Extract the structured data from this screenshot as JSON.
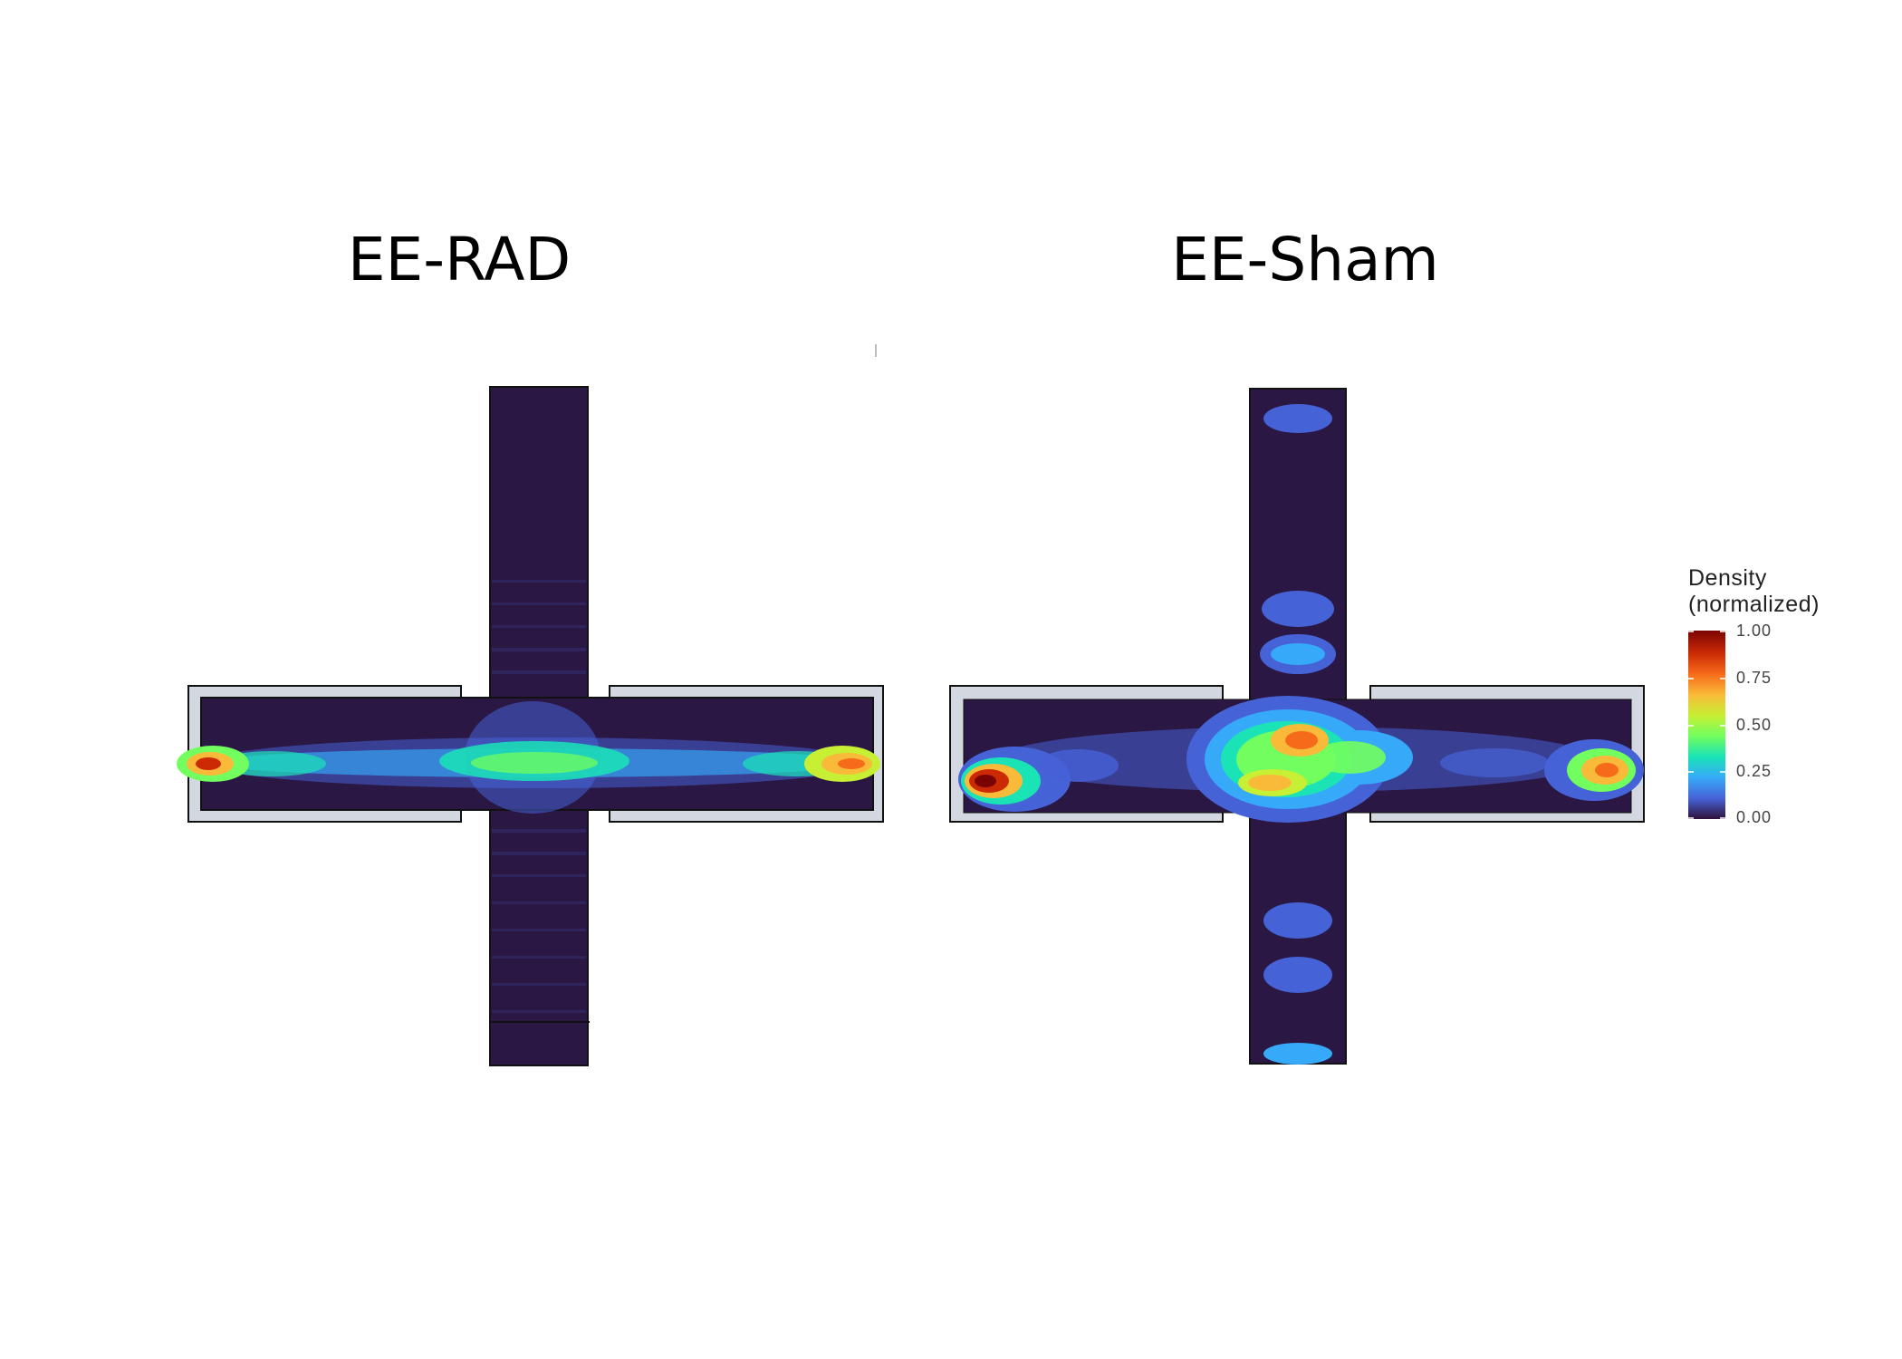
{
  "chart_data": {
    "type": "heatmap",
    "panels": [
      {
        "title": "EE-RAD",
        "hotspots": [
          {
            "arm": "left",
            "x": 0.02,
            "y": 0.58,
            "density": 1.0
          },
          {
            "arm": "right",
            "x": 0.98,
            "y": 0.58,
            "density": 0.85
          },
          {
            "arm": "center",
            "x": 0.5,
            "y": 0.55,
            "density": 0.45
          },
          {
            "arm": "left-mid",
            "x": 0.2,
            "y": 0.58,
            "density": 0.35
          },
          {
            "arm": "right-mid",
            "x": 0.8,
            "y": 0.58,
            "density": 0.35
          }
        ]
      },
      {
        "title": "EE-Sham",
        "hotspots": [
          {
            "arm": "left",
            "x": 0.04,
            "y": 0.7,
            "density": 1.0
          },
          {
            "arm": "right",
            "x": 0.96,
            "y": 0.6,
            "density": 0.8
          },
          {
            "arm": "center-top",
            "x": 0.5,
            "y": 0.35,
            "density": 0.85
          },
          {
            "arm": "center-bottom",
            "x": 0.45,
            "y": 0.7,
            "density": 0.75
          },
          {
            "arm": "top-1",
            "x": 0.5,
            "y": 0.05,
            "density": 0.25
          },
          {
            "arm": "top-2",
            "x": 0.5,
            "y": 0.33,
            "density": 0.25
          },
          {
            "arm": "top-3",
            "x": 0.5,
            "y": 0.4,
            "density": 0.25
          },
          {
            "arm": "bottom-1",
            "x": 0.5,
            "y": 0.79,
            "density": 0.25
          },
          {
            "arm": "bottom-2",
            "x": 0.5,
            "y": 0.86,
            "density": 0.25
          },
          {
            "arm": "bottom-3",
            "x": 0.5,
            "y": 0.99,
            "density": 0.25
          }
        ]
      }
    ],
    "legend": {
      "title": "Density\n(normalized)",
      "ticks": [
        "1.00",
        "0.75",
        "0.50",
        "0.25",
        "0.00"
      ],
      "colors": [
        "#30123b",
        "#4662d7",
        "#36aaf9",
        "#1ae4b6",
        "#72fe5e",
        "#c7ef34",
        "#faba39",
        "#f66b19",
        "#cb2a04",
        "#7a0403"
      ]
    }
  }
}
